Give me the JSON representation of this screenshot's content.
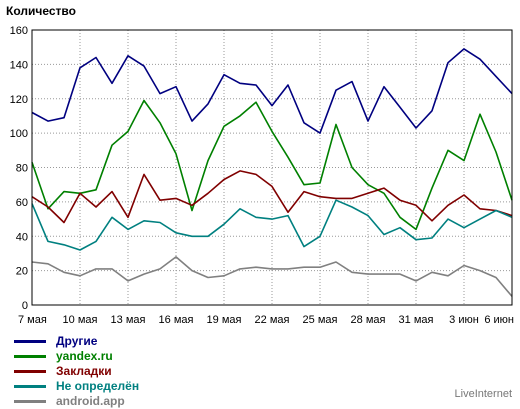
{
  "chart_data": {
    "type": "line",
    "title": "Количество",
    "xlabel": "",
    "ylabel": "",
    "ylim": [
      0,
      160
    ],
    "yticks": [
      0,
      20,
      40,
      60,
      80,
      100,
      120,
      140,
      160
    ],
    "grid": true,
    "legend_position": "bottom-left",
    "x": [
      "7 мая",
      "8 мая",
      "9 мая",
      "10 мая",
      "11 мая",
      "12 мая",
      "13 мая",
      "14 мая",
      "15 мая",
      "16 мая",
      "17 мая",
      "18 мая",
      "19 мая",
      "20 мая",
      "21 мая",
      "22 мая",
      "23 мая",
      "24 мая",
      "25 мая",
      "26 мая",
      "27 мая",
      "28 мая",
      "29 мая",
      "30 мая",
      "31 мая",
      "1 июн",
      "2 июн",
      "3 июн",
      "4 июн",
      "5 июн",
      "6 июн"
    ],
    "xtick_labels": [
      "7 мая",
      "10 мая",
      "13 мая",
      "16 мая",
      "19 мая",
      "22 мая",
      "25 мая",
      "28 мая",
      "31 мая",
      "3 июн",
      "6 июн"
    ],
    "series": [
      {
        "name": "Другие",
        "color": "#000080",
        "values": [
          112,
          107,
          109,
          138,
          144,
          129,
          145,
          139,
          123,
          127,
          107,
          117,
          134,
          129,
          128,
          116,
          128,
          106,
          100,
          125,
          130,
          107,
          127,
          115,
          103,
          113,
          141,
          149,
          143,
          133,
          123
        ]
      },
      {
        "name": "yandex.ru",
        "color": "#008000",
        "values": [
          83,
          56,
          66,
          65,
          67,
          93,
          101,
          119,
          106,
          88,
          55,
          84,
          104,
          110,
          118,
          101,
          86,
          70,
          71,
          105,
          80,
          70,
          65,
          51,
          44,
          68,
          90,
          84,
          111,
          89,
          61
        ]
      },
      {
        "name": "Закладки",
        "color": "#800000",
        "values": [
          63,
          57,
          48,
          65,
          57,
          66,
          51,
          76,
          61,
          62,
          58,
          65,
          73,
          78,
          76,
          69,
          54,
          66,
          63,
          62,
          62,
          65,
          68,
          61,
          58,
          49,
          58,
          64,
          56,
          55,
          52
        ]
      },
      {
        "name": "Не определён",
        "color": "#008080",
        "values": [
          59,
          37,
          35,
          32,
          37,
          51,
          44,
          49,
          48,
          42,
          40,
          40,
          47,
          56,
          51,
          50,
          52,
          34,
          40,
          61,
          57,
          52,
          41,
          45,
          38,
          39,
          50,
          45,
          50,
          55,
          51
        ]
      },
      {
        "name": "android.app",
        "color": "#808080",
        "values": [
          25,
          24,
          19,
          17,
          21,
          21,
          14,
          18,
          21,
          28,
          20,
          16,
          17,
          21,
          22,
          21,
          21,
          22,
          22,
          25,
          19,
          18,
          18,
          18,
          14,
          19,
          17,
          23,
          20,
          16,
          5
        ]
      }
    ]
  },
  "brand": "LiveInternet"
}
